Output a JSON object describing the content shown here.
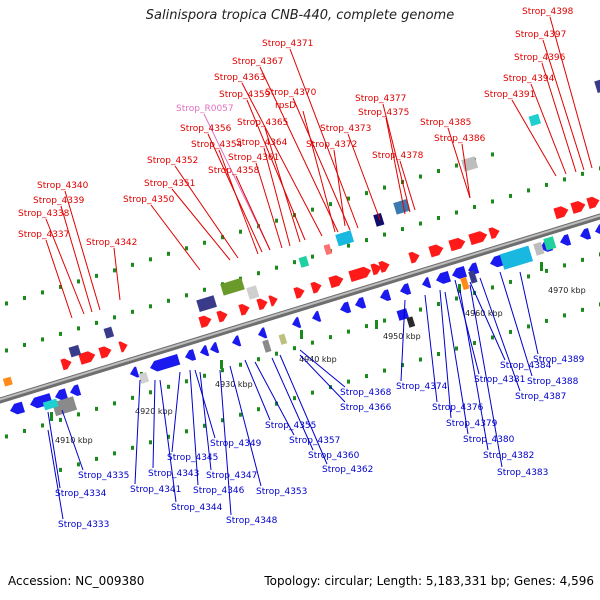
{
  "title": "Salinispora tropica CNB-440, complete genome",
  "footer": {
    "accession": "Accession: NC_009380",
    "summary": "Topology: circular; Length: 5,183,331 bp; Genes: 4,596"
  },
  "colors": {
    "forward_label": "#e00000",
    "reverse_label": "#0000cc",
    "rna_label": "#e070c0",
    "backbone": "#8a8a8a"
  },
  "kbp_ticks": [
    "4910 kbp",
    "4920 kbp",
    "4930 kbp",
    "4940 kbp",
    "4950 kbp",
    "4960 kbp",
    "4970 kbp"
  ],
  "top_labels": [
    {
      "text": "Strop_4398"
    },
    {
      "text": "Strop_4397"
    },
    {
      "text": "Strop_4396"
    },
    {
      "text": "Strop_4394"
    },
    {
      "text": "Strop_4391"
    },
    {
      "text": "Strop_4371"
    },
    {
      "text": "Strop_4367"
    },
    {
      "text": "Strop_4363"
    },
    {
      "text": "Strop_4370"
    },
    {
      "text": "Strop_4359"
    },
    {
      "text": "rpsD"
    },
    {
      "text": "Strop_R0057",
      "rna": true
    },
    {
      "text": "Strop_4365"
    },
    {
      "text": "Strop_4377"
    },
    {
      "text": "Strop_4375"
    },
    {
      "text": "Strop_4356"
    },
    {
      "text": "Strop_4373"
    },
    {
      "text": "Strop_4385"
    },
    {
      "text": "Strop_4354"
    },
    {
      "text": "Strop_4364"
    },
    {
      "text": "Strop_4372"
    },
    {
      "text": "Strop_4386"
    },
    {
      "text": "Strop_4361"
    },
    {
      "text": "Strop_4352"
    },
    {
      "text": "Strop_4378"
    },
    {
      "text": "Strop_4358"
    },
    {
      "text": "Strop_4351"
    },
    {
      "text": "Strop_4340"
    },
    {
      "text": "Strop_4350"
    },
    {
      "text": "Strop_4339"
    },
    {
      "text": "Strop_4338"
    },
    {
      "text": "Strop_4337"
    },
    {
      "text": "Strop_4342"
    }
  ],
  "bottom_labels": [
    {
      "text": "Strop_4389"
    },
    {
      "text": "Strop_4384"
    },
    {
      "text": "Strop_4388"
    },
    {
      "text": "Strop_4381"
    },
    {
      "text": "Strop_4368"
    },
    {
      "text": "Strop_4374"
    },
    {
      "text": "Strop_4387"
    },
    {
      "text": "Strop_4366"
    },
    {
      "text": "Strop_4376"
    },
    {
      "text": "Strop_4379"
    },
    {
      "text": "Strop_4355"
    },
    {
      "text": "Strop_4349"
    },
    {
      "text": "Strop_4357"
    },
    {
      "text": "Strop_4380"
    },
    {
      "text": "Strop_4360"
    },
    {
      "text": "Strop_4382"
    },
    {
      "text": "Strop_4345"
    },
    {
      "text": "Strop_4362"
    },
    {
      "text": "Strop_4335"
    },
    {
      "text": "Strop_4343"
    },
    {
      "text": "Strop_4347"
    },
    {
      "text": "Strop_4383"
    },
    {
      "text": "Strop_4341"
    },
    {
      "text": "Strop_4346"
    },
    {
      "text": "Strop_4353"
    },
    {
      "text": "Strop_4334"
    },
    {
      "text": "Strop_4344"
    },
    {
      "text": "Strop_4348"
    },
    {
      "text": "Strop_4333"
    }
  ]
}
